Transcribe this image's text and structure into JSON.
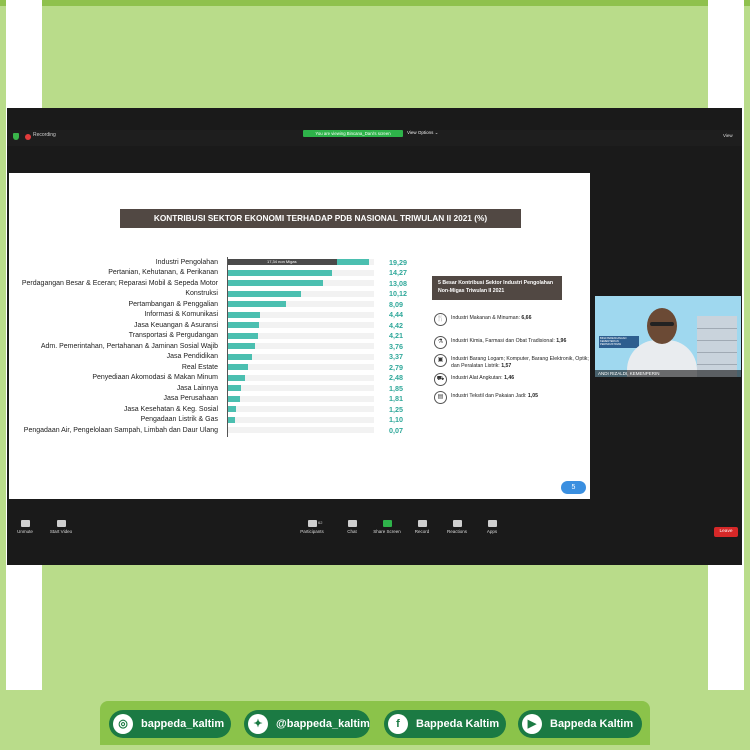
{
  "zoom": {
    "recording_label": "Recording",
    "viewing_badge": "You are viewing Bincana_Dani's screen",
    "view_options": "View Options ⌄",
    "view_button": "View",
    "toolbar": [
      {
        "label": "Unmute",
        "icon": "microphone-icon"
      },
      {
        "label": "Start Video",
        "icon": "video-camera-icon"
      },
      {
        "label": "Participants",
        "icon": "participants-icon",
        "count": "62"
      },
      {
        "label": "Chat",
        "icon": "chat-icon"
      },
      {
        "label": "Share Screen",
        "icon": "share-screen-icon"
      },
      {
        "label": "Record",
        "icon": "record-icon"
      },
      {
        "label": "Reactions",
        "icon": "reactions-icon"
      },
      {
        "label": "Apps",
        "icon": "apps-icon"
      }
    ],
    "leave_label": "Leave",
    "participant_name": "ANDI RIZALDI, KEMENPERIN",
    "video_banner_text": "BINA PERENCANAAN KEMENTERIAN PERINDUSTRIAN"
  },
  "slide": {
    "title": "KONTRIBUSI SEKTOR EKONOMI TERHADAP PDB NASIONAL TRIWULAN II 2021 (%)",
    "page_number": "5",
    "top5_heading": "5 Besar Kontribusi Sektor Industri Pengolahan Non-Migas Triwulan II 2021",
    "top5_items": [
      {
        "label": "Industri Makanan & Minuman:",
        "value": "6,66",
        "icon": "food-drink-icon"
      },
      {
        "label": "Industri Kimia, Farmasi dan Obat Tradisional:",
        "value": "1,96",
        "icon": "flask-icon"
      },
      {
        "label": "Industri Barang Logam; Komputer, Barang Elektronik, Optik; dan Peralatan Listrik:",
        "value": "1,57",
        "icon": "computer-icon"
      },
      {
        "label": "Industri Alat Angkutan:",
        "value": "1,46",
        "icon": "car-icon"
      },
      {
        "label": "Industri Tekstil dan Pakaian Jadi:",
        "value": "1,05",
        "icon": "textile-icon"
      }
    ]
  },
  "chart_data": {
    "type": "bar",
    "orientation": "horizontal",
    "title": "KONTRIBUSI SEKTOR EKONOMI TERHADAP PDB NASIONAL TRIWULAN II 2021 (%)",
    "categories": [
      "Industri Pengolahan",
      "Pertanian, Kehutanan, & Perikanan",
      "Perdagangan Besar & Eceran; Reparasi Mobil & Sepeda Motor",
      "Konstruksi",
      "Pertambangan & Penggalian",
      "Informasi & Komunikasi",
      "Jasa Keuangan & Asuransi",
      "Transportasi & Pergudangan",
      "Adm. Pemerintahan, Pertahanan & Jaminan Sosial Wajib",
      "Jasa Pendidikan",
      "Real Estate",
      "Penyediaan Akomodasi & Makan Minum",
      "Jasa Lainnya",
      "Jasa Perusahaan",
      "Jasa Kesehatan & Keg. Sosial",
      "Pengadaan Listrik & Gas",
      "Pengadaan Air, Pengelolaan Sampah, Limbah dan Daur Ulang"
    ],
    "values": [
      19.29,
      14.27,
      13.08,
      10.12,
      8.09,
      4.44,
      4.42,
      4.21,
      3.76,
      3.37,
      2.79,
      2.48,
      1.85,
      1.81,
      1.25,
      1.1,
      0.07
    ],
    "value_labels": [
      "19,29",
      "14,27",
      "13,08",
      "10,12",
      "8,09",
      "4,44",
      "4,42",
      "4,21",
      "3,76",
      "3,37",
      "2,79",
      "2,48",
      "1,85",
      "1,81",
      "1,25",
      "1,10",
      "0,07"
    ],
    "non_migas_value": 17.34,
    "non_migas_label": "17,34 non Migas",
    "xlim": [
      0,
      20
    ],
    "colors": {
      "bar": "#4bbfb0",
      "non_migas": "#4a4a4a",
      "value_text": "#2fa89a"
    }
  },
  "social": [
    {
      "handle": "bappeda_kaltim",
      "icon": "instagram-icon",
      "glyph": "◎"
    },
    {
      "handle": "@bappeda_kaltim",
      "icon": "twitter-icon",
      "glyph": "✦"
    },
    {
      "handle": "Bappeda Kaltim",
      "icon": "facebook-icon",
      "glyph": "f"
    },
    {
      "handle": "Bappeda Kaltim",
      "icon": "youtube-icon",
      "glyph": "▶"
    }
  ]
}
